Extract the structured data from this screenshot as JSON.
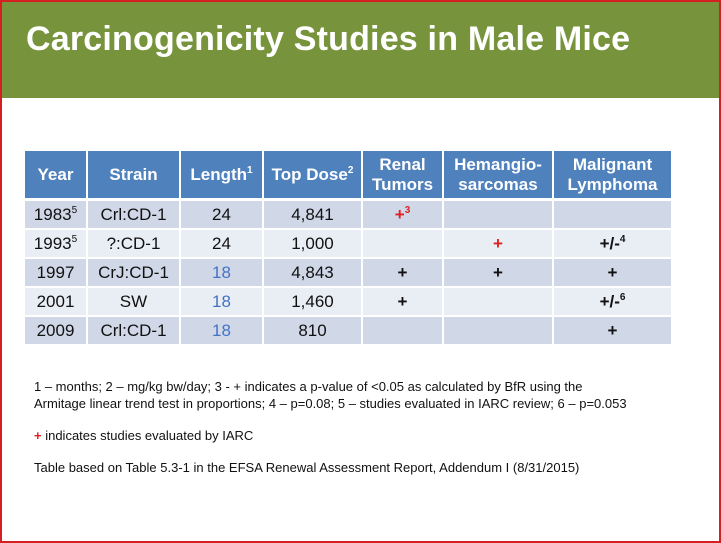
{
  "slide": {
    "title": "Carcinogenicity Studies in Male Mice"
  },
  "table": {
    "headers": {
      "year": "Year",
      "strain": "Strain",
      "length": "Length",
      "length_sup": "1",
      "top_dose": "Top Dose",
      "top_dose_sup": "2",
      "renal_line1": "Renal",
      "renal_line2": "Tumors",
      "hemangio_line1": "Hemangio-",
      "hemangio_line2": "sarcomas",
      "lymphoma_line1": "Malignant",
      "lymphoma_line2": "Lymphoma"
    },
    "rows": [
      {
        "year": "1983",
        "year_sup": "5",
        "strain": "Crl:CD-1",
        "length": "24",
        "top_dose": "4,841",
        "renal": "+",
        "renal_sup": "3",
        "hemangio": "",
        "lymphoma": "",
        "lymphoma_sup": ""
      },
      {
        "year": "1993",
        "year_sup": "5",
        "strain": "?:CD-1",
        "length": "24",
        "top_dose": "1,000",
        "renal": "",
        "renal_sup": "",
        "hemangio": "+",
        "lymphoma": "+/-",
        "lymphoma_sup": "4"
      },
      {
        "year": "1997",
        "year_sup": "",
        "strain": "CrJ:CD-1",
        "length": "18",
        "top_dose": "4,843",
        "renal": "+",
        "renal_sup": "",
        "hemangio": "+",
        "lymphoma": "+",
        "lymphoma_sup": ""
      },
      {
        "year": "2001",
        "year_sup": "",
        "strain": "SW",
        "length": "18",
        "top_dose": "1,460",
        "renal": "+",
        "renal_sup": "",
        "hemangio": "",
        "lymphoma": "+/-",
        "lymphoma_sup": "6"
      },
      {
        "year": "2009",
        "year_sup": "",
        "strain": "Crl:CD-1",
        "length": "18",
        "top_dose": "810",
        "renal": "",
        "renal_sup": "",
        "hemangio": "",
        "lymphoma": "+",
        "lymphoma_sup": ""
      }
    ]
  },
  "notes": {
    "footnote_line1": "1 – months; 2 – mg/kg bw/day; 3 - + indicates a p-value of <0.05 as calculated by BfR using the",
    "footnote_line2": "Armitage linear trend test in proportions; 4 – p=0.08; 5 – studies evaluated in IARC review; 6 – p=0.053",
    "iarc_mark": "+",
    "iarc_text": " indicates studies evaluated by IARC",
    "source": "Table based on Table 5.3-1 in the EFSA Renewal Assessment Report, Addendum I (8/31/2015)"
  },
  "colors": {
    "title_bar": "#77933c",
    "header_fill": "#4f81bd",
    "row_dark": "#d0d8e8",
    "row_light": "#e9edf4",
    "iarc_red": "#e02020",
    "length_blue": "#4472c4",
    "slide_border": "#d42020"
  }
}
